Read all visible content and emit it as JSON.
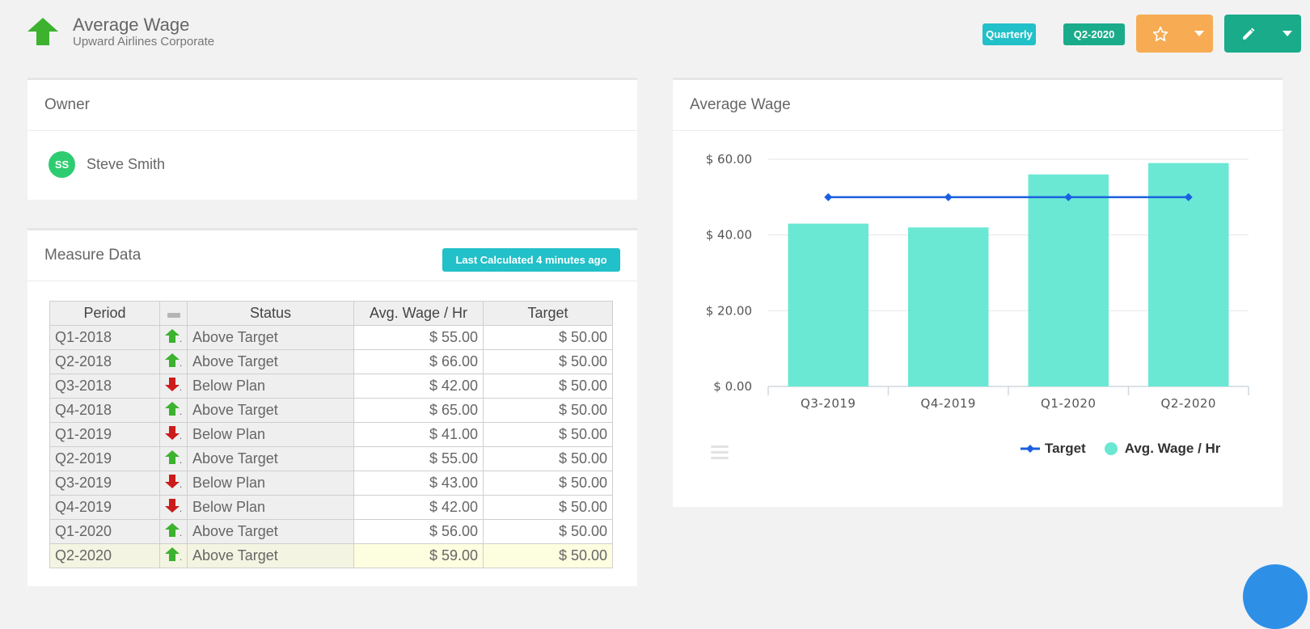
{
  "header": {
    "title": "Average Wage",
    "subtitle": "Upward Airlines Corporate",
    "period_badge": "Quarterly",
    "quarter_badge": "Q2-2020",
    "icon": "arrow-up-icon",
    "colors": {
      "accent_teal": "#22c0c8",
      "accent_green": "#1aab8a",
      "accent_orange": "#f7ac53"
    }
  },
  "owner": {
    "heading": "Owner",
    "initials": "SS",
    "name": "Steve Smith"
  },
  "measure": {
    "heading": "Measure Data",
    "calc_badge": "Last Calculated 4 minutes ago",
    "columns": [
      "Period",
      "",
      "Status",
      "Avg. Wage / Hr",
      "Target"
    ],
    "rows": [
      {
        "period": "Q1-2018",
        "trend": "up",
        "status": "Above Target",
        "avg": "$ 55.00",
        "target": "$ 50.00"
      },
      {
        "period": "Q2-2018",
        "trend": "up",
        "status": "Above Target",
        "avg": "$ 66.00",
        "target": "$ 50.00"
      },
      {
        "period": "Q3-2018",
        "trend": "down",
        "status": "Below Plan",
        "avg": "$ 42.00",
        "target": "$ 50.00"
      },
      {
        "period": "Q4-2018",
        "trend": "up",
        "status": "Above Target",
        "avg": "$ 65.00",
        "target": "$ 50.00"
      },
      {
        "period": "Q1-2019",
        "trend": "down",
        "status": "Below Plan",
        "avg": "$ 41.00",
        "target": "$ 50.00"
      },
      {
        "period": "Q2-2019",
        "trend": "up",
        "status": "Above Target",
        "avg": "$ 55.00",
        "target": "$ 50.00"
      },
      {
        "period": "Q3-2019",
        "trend": "down",
        "status": "Below Plan",
        "avg": "$ 43.00",
        "target": "$ 50.00"
      },
      {
        "period": "Q4-2019",
        "trend": "down",
        "status": "Below Plan",
        "avg": "$ 42.00",
        "target": "$ 50.00"
      },
      {
        "period": "Q1-2020",
        "trend": "up",
        "status": "Above Target",
        "avg": "$ 56.00",
        "target": "$ 50.00"
      },
      {
        "period": "Q2-2020",
        "trend": "up",
        "status": "Above Target",
        "avg": "$ 59.00",
        "target": "$ 50.00"
      }
    ]
  },
  "chart_panel": {
    "heading": "Average Wage"
  },
  "chart_data": {
    "type": "bar",
    "categories": [
      "Q3-2019",
      "Q4-2019",
      "Q1-2020",
      "Q2-2020"
    ],
    "series": [
      {
        "name": "Avg. Wage / Hr",
        "type": "bar",
        "color": "#6ae8d4",
        "values": [
          43,
          42,
          56,
          59
        ]
      },
      {
        "name": "Target",
        "type": "line",
        "color": "#1a5fe0",
        "values": [
          50,
          50,
          50,
          50
        ]
      }
    ],
    "yticks": [
      "$ 0.00",
      "$ 20.00",
      "$ 40.00",
      "$ 60.00"
    ],
    "ylim": [
      0,
      60
    ],
    "grid": true,
    "legend": "bottom-right"
  }
}
